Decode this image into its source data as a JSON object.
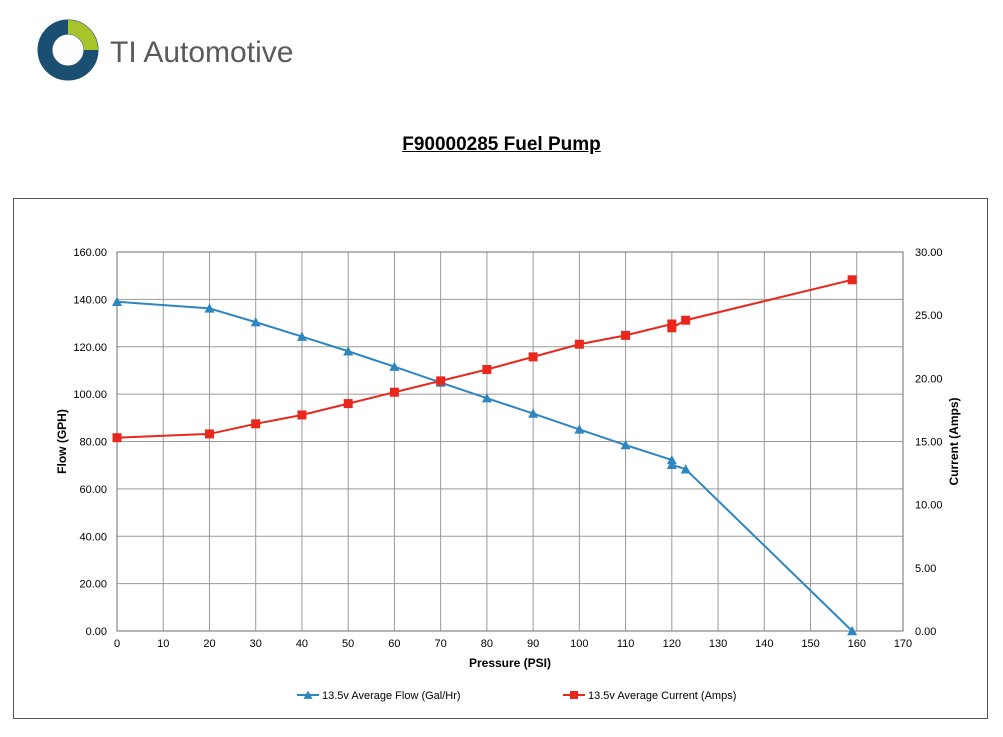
{
  "brand": {
    "name": "TI Automotive",
    "colors": {
      "ring": "#1b4f72",
      "accent": "#a7c52b",
      "text": "#5a5a5a"
    }
  },
  "chart_data": {
    "type": "line",
    "title": "F90000285 Fuel Pump",
    "xlabel": "Pressure (PSI)",
    "ylabel": "Flow (GPH)",
    "y2label": "Current (Amps)",
    "xlim": [
      0,
      170
    ],
    "ylim": [
      0,
      160
    ],
    "y2lim": [
      0,
      30
    ],
    "x_ticks": [
      0,
      10,
      20,
      30,
      40,
      50,
      60,
      70,
      80,
      90,
      100,
      110,
      120,
      130,
      140,
      150,
      160,
      170
    ],
    "y_ticks": [
      "0.00",
      "20.00",
      "40.00",
      "60.00",
      "80.00",
      "100.00",
      "120.00",
      "140.00",
      "160.00"
    ],
    "y2_ticks": [
      "0.00",
      "5.00",
      "10.00",
      "15.00",
      "20.00",
      "25.00",
      "30.00"
    ],
    "grid": true,
    "legend_position": "bottom",
    "series": [
      {
        "name": "13.5v Average Flow (Gal/Hr)",
        "axis": "left",
        "color": "#2e86c1",
        "marker": "triangle",
        "x": [
          0,
          20,
          30,
          40,
          50,
          60,
          70,
          80,
          90,
          100,
          110,
          120,
          120,
          123,
          159
        ],
        "y": [
          139,
          136.2,
          130.4,
          124.3,
          118.1,
          111.6,
          104.9,
          98.3,
          91.8,
          85.1,
          78.5,
          72.2,
          70.2,
          68.3,
          0
        ]
      },
      {
        "name": "13.5v Average Current (Amps)",
        "axis": "right",
        "color": "#e8281d",
        "marker": "square",
        "x": [
          0,
          20,
          30,
          40,
          50,
          60,
          70,
          80,
          90,
          100,
          110,
          120,
          120,
          123,
          159
        ],
        "y": [
          15.3,
          15.6,
          16.4,
          17.1,
          18.0,
          18.9,
          19.8,
          20.7,
          21.7,
          22.7,
          23.4,
          24.3,
          24.0,
          24.6,
          27.8
        ]
      }
    ]
  }
}
